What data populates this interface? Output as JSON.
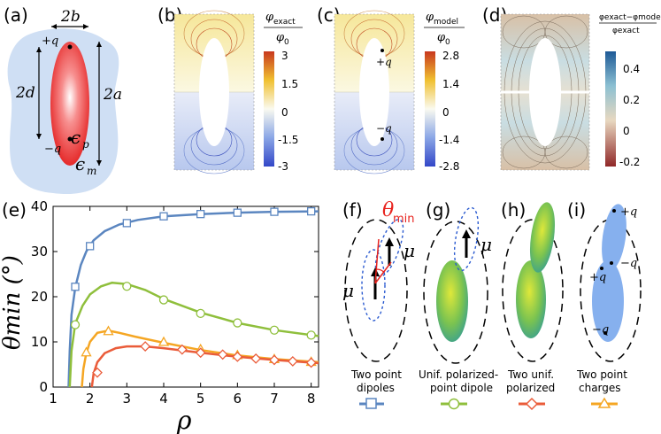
{
  "panels": {
    "a": "(a)",
    "b": "(b)",
    "c": "(c)",
    "d": "(d)",
    "e": "(e)",
    "f": "(f)",
    "g": "(g)",
    "h": "(h)",
    "i": "(i)"
  },
  "panel_a": {
    "width_label": "2b",
    "dist_label": "2d",
    "len_label": "2a",
    "plus_q": "+q",
    "minus_q": "−q",
    "eps_p": "ϵ",
    "eps_p_sub": "p",
    "eps_m": "ϵ",
    "eps_m_sub": "m"
  },
  "panel_b": {
    "title": "φ",
    "title_sub": "exact",
    "denom": "φ",
    "denom_sub": "0",
    "ticks": [
      "3",
      "1.5",
      "0",
      "-1.5",
      "-3"
    ]
  },
  "panel_c": {
    "title": "φ",
    "title_sub": "model",
    "denom": "φ",
    "denom_sub": "0",
    "ticks": [
      "2.8",
      "1.4",
      "0",
      "-1.4",
      "-2.8"
    ],
    "plus_q": "+q",
    "minus_q": "−q"
  },
  "panel_d": {
    "title_num": "φexact−φmodel",
    "title_den": "φexact",
    "ticks": [
      "0.4",
      "0.2",
      "0",
      "-0.2"
    ]
  },
  "colors": {
    "s1": "#5b86c0",
    "s2": "#8fbf3c",
    "s3": "#f5a623",
    "s4": "#ea5c3a",
    "red": "#e8231e",
    "ellipse_blue": "#86b0ee"
  },
  "chart_data": {
    "type": "line",
    "xlabel": "ρ",
    "ylabel": "θmin (°)",
    "xlim": [
      1,
      8.2
    ],
    "ylim": [
      0,
      40
    ],
    "xticks": [
      "1",
      "2",
      "3",
      "4",
      "5",
      "6",
      "7",
      "8"
    ],
    "yticks": [
      "0",
      "10",
      "20",
      "30",
      "40"
    ],
    "grid": false,
    "series": [
      {
        "name": "Two point dipoles",
        "color": "#5b86c0",
        "marker": "square",
        "x": [
          1.42,
          1.45,
          1.5,
          1.6,
          1.75,
          1.9,
          2.1,
          2.4,
          2.8,
          3.3,
          4.0,
          5.0,
          6.0,
          7.0,
          8.2
        ],
        "y": [
          0,
          8,
          16,
          22,
          27,
          30,
          32.5,
          34.5,
          36,
          37,
          37.8,
          38.3,
          38.6,
          38.8,
          38.9
        ],
        "markers_x": [
          1.6,
          2.0,
          3.0,
          4.0,
          5.0,
          6.0,
          7.0,
          8.0
        ],
        "markers_y": [
          22.2,
          31.2,
          36.3,
          37.8,
          38.3,
          38.6,
          38.8,
          38.9
        ]
      },
      {
        "name": "Unif. polarized-point dipole",
        "color": "#8fbf3c",
        "marker": "circle",
        "x": [
          1.45,
          1.5,
          1.6,
          1.8,
          2.0,
          2.3,
          2.6,
          3.0,
          3.5,
          4.0,
          5.0,
          6.0,
          7.0,
          8.2
        ],
        "y": [
          0,
          8,
          14,
          18,
          20.5,
          22.3,
          23.1,
          22.8,
          21.5,
          19.5,
          16.5,
          14.2,
          12.6,
          11.3
        ],
        "markers_x": [
          1.6,
          3.0,
          4.0,
          5.0,
          6.0,
          7.0,
          8.0
        ],
        "markers_y": [
          13.8,
          22.3,
          19.3,
          16.3,
          14.2,
          12.6,
          11.5
        ]
      },
      {
        "name": "Two point charges",
        "color": "#f5a623",
        "marker": "triangle",
        "x": [
          1.78,
          1.82,
          1.9,
          2.0,
          2.2,
          2.5,
          2.8,
          3.2,
          4.0,
          5.0,
          6.0,
          7.0,
          8.2
        ],
        "y": [
          0,
          4,
          7.5,
          10,
          12,
          12.5,
          12,
          11.2,
          9.8,
          8.2,
          7,
          6.2,
          5.5
        ],
        "markers_x": [
          1.9,
          2.5,
          4.0,
          5.0,
          6.0,
          7.0,
          8.0
        ],
        "markers_y": [
          7.7,
          12.4,
          10.0,
          8.4,
          7.1,
          6.2,
          5.6
        ]
      },
      {
        "name": "Two unif. polarized",
        "color": "#ea5c3a",
        "marker": "diamond",
        "x": [
          2.05,
          2.1,
          2.2,
          2.4,
          2.7,
          3.0,
          3.5,
          4.0,
          5.0,
          6.0,
          7.0,
          8.2
        ],
        "y": [
          0,
          3,
          5.5,
          7.5,
          8.6,
          9,
          9,
          8.6,
          7.6,
          6.7,
          6,
          5.3
        ],
        "markers_x": [
          2.2,
          3.5,
          4.5,
          5.0,
          5.6,
          6.0,
          6.5,
          7.0,
          7.5,
          8.0
        ],
        "markers_y": [
          3.2,
          9.0,
          8.3,
          7.6,
          7.2,
          6.7,
          6.3,
          6.0,
          5.7,
          5.4
        ]
      }
    ]
  },
  "panel_f": {
    "theta": "θ",
    "theta_sub": "min",
    "mu_a": "μ",
    "mu_b": "μ",
    "caption": [
      "Two point",
      "dipoles"
    ]
  },
  "panel_g": {
    "mu": "μ",
    "caption": [
      "Unif. polarized-",
      "point dipole"
    ]
  },
  "panel_h": {
    "caption": [
      "Two unif.",
      "polarized"
    ]
  },
  "panel_i": {
    "plus_q1": "+q",
    "minus_q1": "−q",
    "plus_q2": "+q",
    "minus_q2": "−q",
    "caption": [
      "Two point",
      "charges"
    ]
  }
}
